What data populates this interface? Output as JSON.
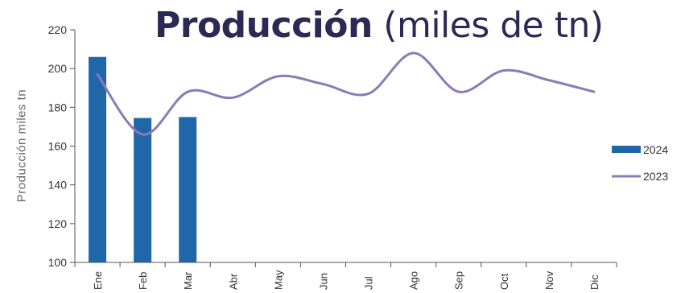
{
  "chart_data": {
    "type": "bar",
    "title_bold": "Producción",
    "title_rest": "(miles de tn)",
    "ylabel": "Producción  miles tn",
    "xlabel": "",
    "ylim": [
      100,
      220
    ],
    "yticks": [
      100,
      120,
      140,
      160,
      180,
      200,
      220
    ],
    "categories": [
      "Ene",
      "Feb",
      "Mar",
      "Abr",
      "May",
      "Jun",
      "Jul",
      "Ago",
      "Sep",
      "Oct",
      "Nov",
      "Dic"
    ],
    "series": [
      {
        "name": "2024",
        "kind": "bar",
        "color": "#1f67a8",
        "values": [
          206,
          174.5,
          175,
          null,
          null,
          null,
          null,
          null,
          null,
          null,
          null,
          null
        ]
      },
      {
        "name": "2023",
        "kind": "line",
        "color": "#8a7bb8",
        "values": [
          197,
          166,
          188,
          185,
          196,
          192,
          187,
          208,
          188,
          199,
          194,
          188
        ]
      }
    ],
    "legend_position": "right",
    "grid": false
  }
}
